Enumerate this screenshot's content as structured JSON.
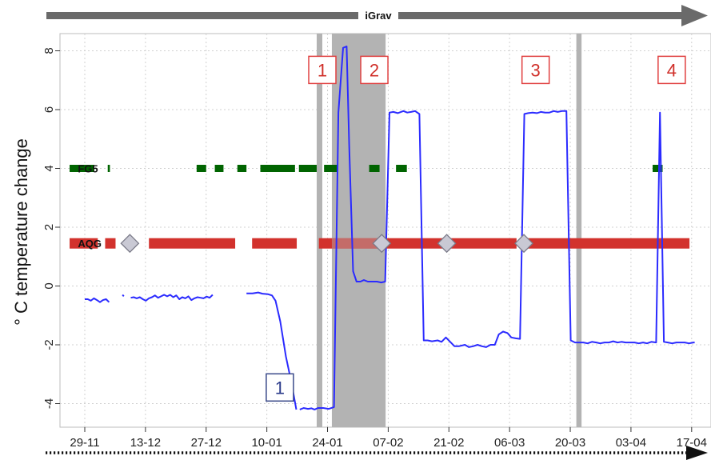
{
  "chart_data": {
    "type": "line",
    "title": "",
    "xlabel": "",
    "ylabel": "° C temperature change",
    "x_ticks": [
      "29-11",
      "13-12",
      "27-12",
      "10-01",
      "24-01",
      "07-02",
      "21-02",
      "06-03",
      "20-03",
      "03-04",
      "17-04"
    ],
    "y_ticks": [
      "8",
      "6",
      "4",
      "2",
      "0",
      "-2",
      "-4"
    ],
    "ylim": [
      -5.2,
      8.6
    ],
    "grid": true,
    "series": [
      {
        "color": "#2b2bff",
        "x_days": [
          [
            0,
            0.7,
            1.4,
            2.1,
            2.8,
            3.5,
            4.2,
            4.9,
            5.6
          ],
          [
            8.7,
            9.0
          ],
          [
            10.6,
            11.3,
            12.0,
            12.7,
            13.4,
            14.1,
            14.8,
            15.5,
            16.2,
            16.9,
            17.6,
            18.3,
            19.0,
            19.7,
            20.4,
            21.1,
            21.8,
            22.5,
            23.2,
            23.9,
            24.6,
            25.3,
            26.0,
            26.7,
            27.4,
            28.1,
            28.8,
            29.5
          ],
          [
            37.3,
            38.7,
            40.0,
            41.0,
            42.3,
            43.2,
            44.0,
            45.1,
            46.4,
            47.7,
            48.8
          ],
          [
            49.6,
            50.5,
            51.5,
            52.3,
            53.0,
            53.8,
            55.0,
            56.3,
            57.5,
            58.5,
            59.6,
            60.4,
            61.0,
            61.9,
            62.7,
            63.6,
            64.4,
            65.3,
            66.1,
            67.4,
            68.4,
            69.3,
            70.3,
            71.2,
            72.2,
            73.5,
            74.4,
            75.3,
            76.2,
            77.2,
            78.2,
            79.1,
            80.1,
            81.4,
            82.3,
            83.3,
            84.3,
            85.3,
            86.3,
            87.7,
            88.6,
            89.6,
            90.6,
            91.6,
            92.6,
            93.6,
            94.6,
            95.5,
            96.5,
            97.5,
            98.4,
            99.4,
            100.4,
            101.4,
            102.3,
            103.3,
            104.3,
            105.2,
            106.2,
            107.2,
            108.2,
            109.1,
            110.1,
            111.1,
            112.1,
            113.1,
            114.1,
            115.0,
            116.0,
            117.0,
            118.0,
            118.9,
            119.9,
            120.9,
            121.9,
            122.9,
            123.8,
            124.8,
            125.8,
            126.8,
            127.8,
            128.8,
            129.7,
            130.7,
            131.8,
            132.7,
            133.6,
            134.5,
            135.5,
            136.5,
            137.4,
            138.4,
            139.4,
            140.4,
            140.7
          ]
        ],
        "y": [
          [
            -0.45,
            -0.45,
            -0.5,
            -0.42,
            -0.48,
            -0.55,
            -0.48,
            -0.45,
            -0.55
          ],
          [
            -0.3,
            -0.35
          ],
          [
            -0.4,
            -0.38,
            -0.42,
            -0.38,
            -0.45,
            -0.5,
            -0.42,
            -0.38,
            -0.32,
            -0.4,
            -0.35,
            -0.3,
            -0.35,
            -0.3,
            -0.38,
            -0.32,
            -0.45,
            -0.38,
            -0.42,
            -0.35,
            -0.48,
            -0.42,
            -0.38,
            -0.4,
            -0.42,
            -0.36,
            -0.4,
            -0.3
          ],
          [
            -0.25,
            -0.25,
            -0.22,
            -0.26,
            -0.28,
            -0.32,
            -0.5,
            -1.2,
            -2.4,
            -3.3,
            -4.2
          ],
          [
            -4.2,
            -4.15,
            -4.18,
            -4.16,
            -4.2,
            -4.15,
            -4.15,
            -4.18,
            -4.12,
            5.9,
            8.1,
            8.15,
            4.8,
            0.5,
            0.15,
            0.15,
            0.2,
            0.15,
            0.15,
            0.15,
            0.12,
            0.15,
            5.9,
            5.92,
            5.88,
            5.95,
            5.9,
            5.92,
            5.95,
            5.85,
            -1.85,
            -1.85,
            -1.88,
            -1.85,
            -1.9,
            -1.75,
            -1.9,
            -2.05,
            -2.05,
            -2.0,
            -2.08,
            -2.05,
            -2.0,
            -2.05,
            -2.08,
            -2.0,
            -2.0,
            -1.65,
            -1.55,
            -1.6,
            -1.75,
            -1.78,
            -1.8,
            5.85,
            5.88,
            5.9,
            5.88,
            5.92,
            5.9,
            5.9,
            5.95,
            5.92,
            5.95,
            5.95,
            -1.85,
            -1.92,
            -1.92,
            -1.92,
            -1.95,
            -1.9,
            -1.92,
            -1.95,
            -1.92,
            -1.92,
            -1.88,
            -1.92,
            -1.9,
            -1.92,
            -1.92,
            -1.92,
            -1.95,
            -1.92,
            -1.95,
            -1.9,
            -1.92,
            5.9,
            -1.9,
            -1.92,
            -1.95,
            -1.92,
            -1.92,
            -1.92,
            -1.95,
            -1.92,
            -1.92,
            -1.92
          ]
        ]
      }
    ],
    "shaded_periods_days": [
      [
        53.5,
        54.8
      ],
      [
        57.0,
        69.4
      ],
      [
        113.4,
        114.6
      ]
    ],
    "instrument_bars": [
      {
        "label": "FG5",
        "y": 4.0,
        "color": "#006400",
        "intervals_days": [
          [
            -3.5,
            2.2
          ],
          [
            5.3,
            5.8
          ],
          [
            25.8,
            28.0
          ],
          [
            30.0,
            32.0
          ],
          [
            35.2,
            37.3
          ],
          [
            40.5,
            48.5
          ],
          [
            49.4,
            53.5
          ],
          [
            55.2,
            58.3
          ],
          [
            65.6,
            68.0
          ],
          [
            71.8,
            74.3
          ],
          [
            131.0,
            133.3
          ]
        ]
      },
      {
        "label": "AQG",
        "y": 1.45,
        "color": "#d2322d",
        "intervals_days": [
          [
            -3.5,
            3.0
          ],
          [
            4.7,
            7.1
          ],
          [
            14.8,
            34.7
          ],
          [
            38.6,
            48.9
          ],
          [
            54.0,
            99.6
          ],
          [
            101.3,
            139.5
          ]
        ]
      }
    ],
    "markers": [
      {
        "label": "grey diamond",
        "x_day": 10.4,
        "y": 1.45
      },
      {
        "label": "grey diamond",
        "x_day": 68.5,
        "y": 1.45
      },
      {
        "label": "grey diamond",
        "x_day": 83.5,
        "y": 1.45
      },
      {
        "label": "grey diamond",
        "x_day": 101.3,
        "y": 1.45
      }
    ],
    "annotations": [
      {
        "text": "1",
        "x_day": 45.0,
        "y": -3.45,
        "border": "#3a4a8a",
        "color": "#2a3a8a"
      },
      {
        "text": "1",
        "x_day": 54.8,
        "y": 7.35,
        "border": "#e04040",
        "color": "#d0302a"
      },
      {
        "text": "2",
        "x_day": 66.8,
        "y": 7.35,
        "border": "#e04040",
        "color": "#d0302a"
      },
      {
        "text": "3",
        "x_day": 104.0,
        "y": 7.35,
        "border": "#e04040",
        "color": "#d0302a"
      },
      {
        "text": "4",
        "x_day": 135.4,
        "y": 7.35,
        "border": "#e04040",
        "color": "#d0302a"
      }
    ],
    "top_arrow_label": "iGrav"
  }
}
